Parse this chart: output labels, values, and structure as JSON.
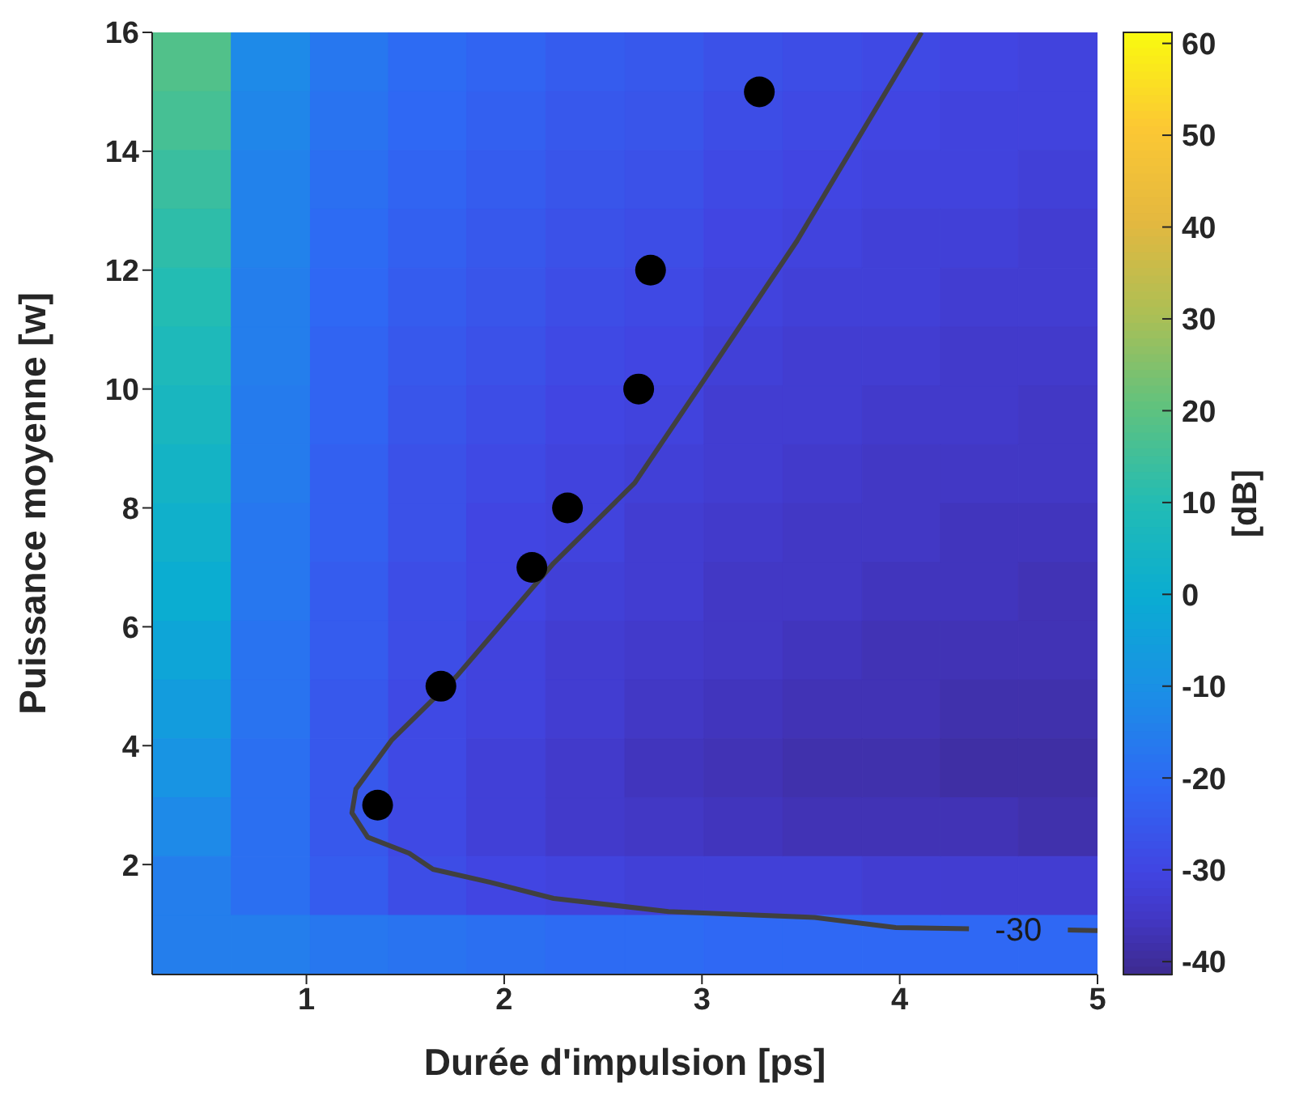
{
  "chart_data": {
    "type": "heatmap",
    "xlabel": "Durée d'impulsion [ps]",
    "ylabel": "Puissance moyenne [w]",
    "clabel": "[dB]",
    "x": [
      0.42,
      0.82,
      1.22,
      1.61,
      2.01,
      2.41,
      2.81,
      3.21,
      3.61,
      4.01,
      4.4,
      4.8
    ],
    "y": [
      15.5,
      14.51,
      13.52,
      12.53,
      11.54,
      10.55,
      9.56,
      8.57,
      7.58,
      6.59,
      5.6,
      4.61,
      3.62,
      2.63,
      1.64,
      0.65
    ],
    "cells": [
      [
        18,
        -12,
        -17,
        -20,
        -22,
        -24,
        -25,
        -27,
        -28,
        -29,
        -30,
        -31
      ],
      [
        16,
        -13,
        -18,
        -21,
        -23,
        -25,
        -26,
        -28,
        -29,
        -30,
        -31,
        -31
      ],
      [
        14,
        -14,
        -19,
        -22,
        -24,
        -26,
        -27,
        -29,
        -30,
        -31,
        -31,
        -32
      ],
      [
        12,
        -14,
        -20,
        -23,
        -25,
        -27,
        -28,
        -30,
        -31,
        -32,
        -32,
        -33
      ],
      [
        10,
        -15,
        -21,
        -24,
        -26,
        -28,
        -29,
        -31,
        -32,
        -32,
        -33,
        -33
      ],
      [
        8,
        -15,
        -22,
        -25,
        -27,
        -29,
        -30,
        -32,
        -33,
        -33,
        -34,
        -34
      ],
      [
        6,
        -16,
        -22,
        -26,
        -28,
        -30,
        -31,
        -33,
        -33,
        -34,
        -34,
        -35
      ],
      [
        4,
        -16,
        -23,
        -27,
        -29,
        -31,
        -32,
        -33,
        -34,
        -35,
        -35,
        -35
      ],
      [
        2,
        -17,
        -23,
        -27,
        -30,
        -31,
        -33,
        -34,
        -35,
        -35,
        -36,
        -36
      ],
      [
        0,
        -17,
        -24,
        -28,
        -30,
        -32,
        -33,
        -35,
        -35,
        -36,
        -36,
        -37
      ],
      [
        -3,
        -18,
        -24,
        -28,
        -31,
        -33,
        -34,
        -35,
        -36,
        -37,
        -37,
        -37
      ],
      [
        -6,
        -18,
        -25,
        -29,
        -31,
        -33,
        -35,
        -36,
        -37,
        -37,
        -38,
        -38
      ],
      [
        -9,
        -19,
        -25,
        -29,
        -32,
        -34,
        -36,
        -37,
        -38,
        -38,
        -39,
        -39
      ],
      [
        -12,
        -19,
        -25,
        -29,
        -32,
        -34,
        -35,
        -36,
        -37,
        -37,
        -37,
        -38
      ],
      [
        -15,
        -19,
        -24,
        -28,
        -30,
        -31,
        -32,
        -32,
        -32,
        -33,
        -33,
        -33
      ],
      [
        -15,
        -15,
        -17,
        -18,
        -19,
        -20,
        -20,
        -21,
        -21,
        -21,
        -21,
        -21
      ]
    ],
    "clim": [
      -41.4,
      61.2
    ],
    "cticks": [
      -40,
      -30,
      -20,
      -10,
      0,
      10,
      20,
      30,
      40,
      50,
      60
    ],
    "xlim": [
      0.22,
      5
    ],
    "xticks": [
      1,
      2,
      3,
      4,
      5
    ],
    "ylim": [
      0.15,
      16
    ],
    "yticks": [
      2,
      4,
      6,
      8,
      10,
      12,
      14,
      16
    ],
    "series": [
      {
        "type": "line",
        "color": "#404040",
        "x": [
          4.11,
          3.48,
          2.99,
          2.66,
          2.25,
          1.76,
          1.43,
          1.25,
          1.23,
          1.31,
          1.52,
          1.64,
          1.93,
          2.25,
          2.83,
          3.57,
          3.98,
          4.35,
          4.6,
          4.85,
          5
        ],
        "values": [
          16,
          12.49,
          10.05,
          8.42,
          7.07,
          5.17,
          4.09,
          3.27,
          2.87,
          2.46,
          2.19,
          1.92,
          1.7,
          1.43,
          1.21,
          1.11,
          0.94,
          0.92,
          null,
          0.9,
          0.89
        ]
      },
      {
        "type": "scatter",
        "color": "#000000",
        "marker": "circle",
        "x": [
          1.36,
          1.68,
          2.14,
          2.32,
          2.68,
          2.74,
          3.29
        ],
        "values": [
          3,
          5,
          7,
          8,
          10,
          12,
          15
        ]
      }
    ],
    "annotations": [
      "-30"
    ]
  }
}
